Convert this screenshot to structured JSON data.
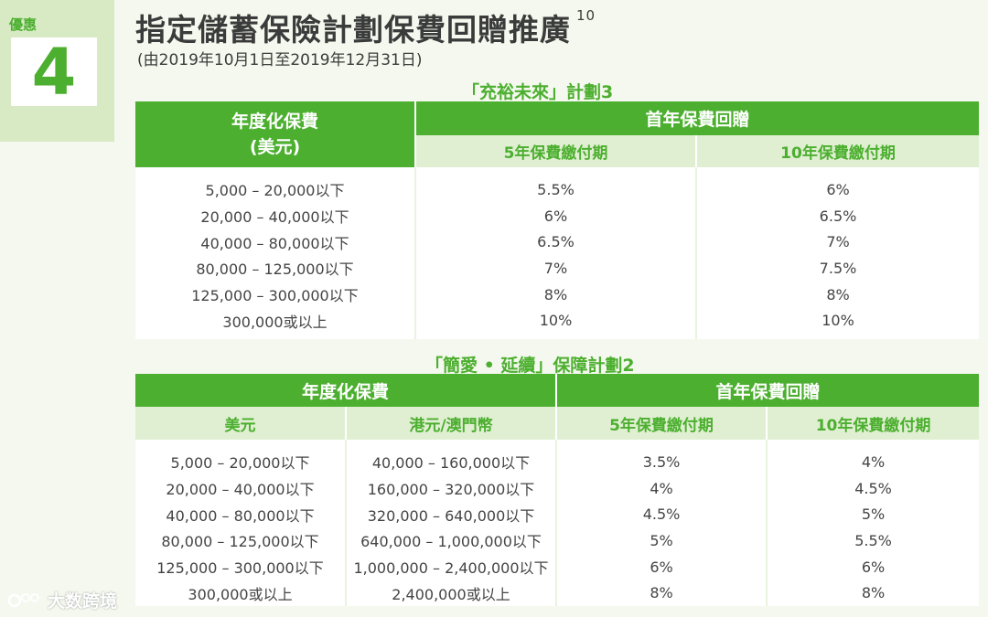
{
  "badge": {
    "label": "優惠",
    "number": "4"
  },
  "title": "指定儲蓄保險計劃保費回贈推廣",
  "title_note": "10",
  "subtitle": "(由2019年10月1日至2019年12月31日)",
  "plan1": {
    "title": "「充裕未來」計劃3",
    "header_premium": "年度化保費",
    "header_premium_unit": "(美元)",
    "header_rebate": "首年保費回贈",
    "col_5yr": "5年保費繳付期",
    "col_10yr": "10年保費繳付期",
    "rows": [
      {
        "premium": "5,000 – 20,000以下",
        "r5": "5.5%",
        "r10": "6%"
      },
      {
        "premium": "20,000 – 40,000以下",
        "r5": "6%",
        "r10": "6.5%"
      },
      {
        "premium": "40,000 – 80,000以下",
        "r5": "6.5%",
        "r10": "7%"
      },
      {
        "premium": "80,000 – 125,000以下",
        "r5": "7%",
        "r10": "7.5%"
      },
      {
        "premium": "125,000 – 300,000以下",
        "r5": "8%",
        "r10": "8%"
      },
      {
        "premium": "300,000或以上",
        "r5": "10%",
        "r10": "10%"
      }
    ]
  },
  "plan2": {
    "title": "「簡愛 • 延續」保障計劃2",
    "header_premium": "年度化保費",
    "header_rebate": "首年保費回贈",
    "col_usd": "美元",
    "col_hkd": "港元/澳門幣",
    "col_5yr": "5年保費繳付期",
    "col_10yr": "10年保費繳付期",
    "rows": [
      {
        "usd": "5,000 – 20,000以下",
        "hkd": "40,000 – 160,000以下",
        "r5": "3.5%",
        "r10": "4%"
      },
      {
        "usd": "20,000 – 40,000以下",
        "hkd": "160,000 – 320,000以下",
        "r5": "4%",
        "r10": "4.5%"
      },
      {
        "usd": "40,000 – 80,000以下",
        "hkd": "320,000 – 640,000以下",
        "r5": "4.5%",
        "r10": "5%"
      },
      {
        "usd": "80,000 – 125,000以下",
        "hkd": "640,000 – 1,000,000以下",
        "r5": "5%",
        "r10": "5.5%"
      },
      {
        "usd": "125,000 – 300,000以下",
        "hkd": "1,000,000 – 2,400,000以下",
        "r5": "6%",
        "r10": "6%"
      },
      {
        "usd": "300,000或以上",
        "hkd": "2,400,000或以上",
        "r5": "8%",
        "r10": "8%"
      }
    ]
  },
  "watermark": "大数跨境",
  "colors": {
    "accent": "#4caf2f",
    "light": "#e0efd2",
    "background": "#f4f8ee"
  }
}
